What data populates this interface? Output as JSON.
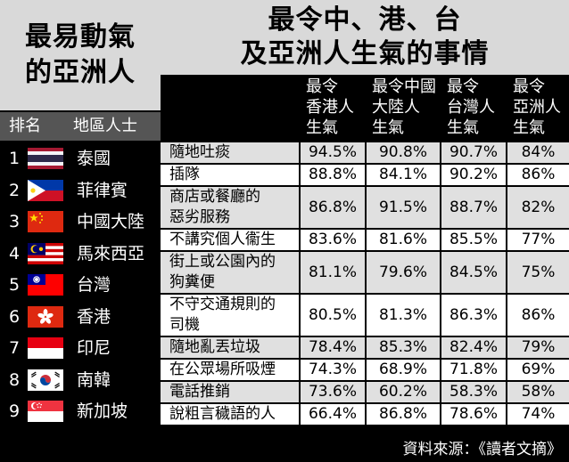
{
  "left_title": [
    "最易動氣",
    "的亞洲人"
  ],
  "left_header": {
    "rank": "排名",
    "region": "地區人士"
  },
  "ranking": [
    {
      "rank": "1",
      "name": "泰國",
      "flag": "thailand-flag"
    },
    {
      "rank": "2",
      "name": "菲律賓",
      "flag": "philippines-flag"
    },
    {
      "rank": "3",
      "name": "中國大陸",
      "flag": "china-flag"
    },
    {
      "rank": "4",
      "name": "馬來西亞",
      "flag": "malaysia-flag"
    },
    {
      "rank": "5",
      "name": "台灣",
      "flag": "taiwan-flag"
    },
    {
      "rank": "6",
      "name": "香港",
      "flag": "hongkong-flag"
    },
    {
      "rank": "7",
      "name": "印尼",
      "flag": "indonesia-flag"
    },
    {
      "rank": "8",
      "name": "南韓",
      "flag": "korea-flag"
    },
    {
      "rank": "9",
      "name": "新加坡",
      "flag": "singapore-flag"
    }
  ],
  "right_title": [
    "最令中、港、台",
    "及亞洲人生氣的事情"
  ],
  "colors": {
    "panel_black": "#000000",
    "header_gray": "#d9d9d9",
    "row_light": "#ffffff",
    "row_shade": "#e0e0e0",
    "rank_header": "#555555"
  },
  "chart_data": {
    "type": "table",
    "columns": [
      [
        "最令",
        "香港人",
        "生氣"
      ],
      [
        "最令中國",
        "大陸人",
        "生氣"
      ],
      [
        "最令",
        "台灣人",
        "生氣"
      ],
      [
        "最令",
        "亞洲人",
        "生氣"
      ]
    ],
    "rows": [
      {
        "label": [
          "隨地吐痰"
        ],
        "values": [
          "94.5%",
          "90.8%",
          "90.7%",
          "84%"
        ]
      },
      {
        "label": [
          "插隊"
        ],
        "values": [
          "88.8%",
          "84.1%",
          "90.2%",
          "86%"
        ]
      },
      {
        "label": [
          "商店或餐廳的",
          "惡劣服務"
        ],
        "values": [
          "86.8%",
          "91.5%",
          "88.7%",
          "82%"
        ]
      },
      {
        "label": [
          "不講究個人衞生"
        ],
        "values": [
          "83.6%",
          "81.6%",
          "85.5%",
          "77%"
        ]
      },
      {
        "label": [
          "街上或公園內的",
          "狗糞便"
        ],
        "values": [
          "81.1%",
          "79.6%",
          "84.5%",
          "75%"
        ]
      },
      {
        "label": [
          "不守交通規則的",
          "司機"
        ],
        "values": [
          "80.5%",
          "81.3%",
          "86.3%",
          "86%"
        ]
      },
      {
        "label": [
          "隨地亂丟垃圾"
        ],
        "values": [
          "78.4%",
          "85.3%",
          "82.4%",
          "79%"
        ]
      },
      {
        "label": [
          "在公眾場所吸煙"
        ],
        "values": [
          "74.3%",
          "68.9%",
          "71.8%",
          "69%"
        ]
      },
      {
        "label": [
          "電話推銷"
        ],
        "values": [
          "73.6%",
          "60.2%",
          "58.3%",
          "58%"
        ]
      },
      {
        "label": [
          "說粗言穢語的人"
        ],
        "values": [
          "66.4%",
          "86.8%",
          "78.6%",
          "74%"
        ]
      }
    ]
  },
  "source": "資料來源：《讀者文摘》"
}
